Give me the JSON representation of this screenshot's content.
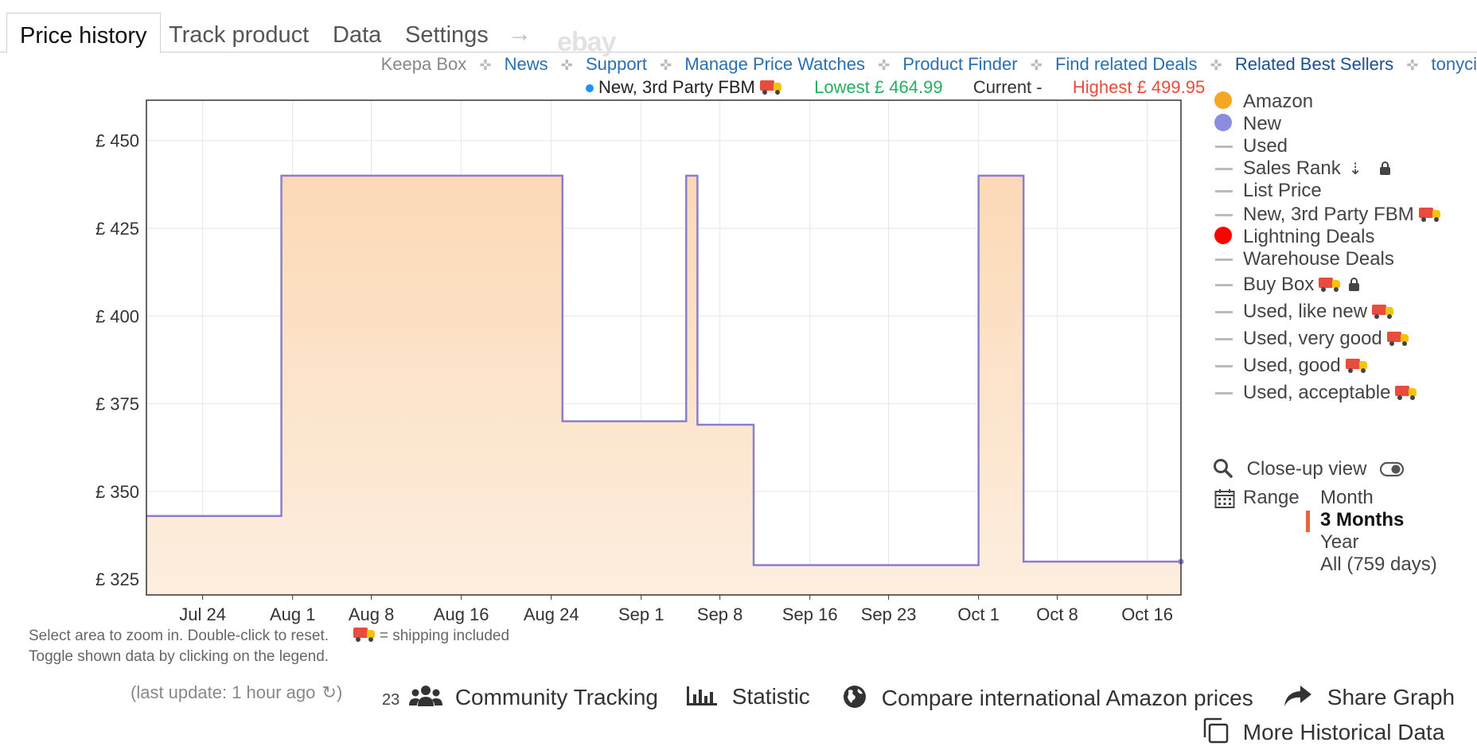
{
  "tabs": [
    {
      "label": "Price history",
      "active": true
    },
    {
      "label": "Track product",
      "active": false
    },
    {
      "label": "Data",
      "active": false
    },
    {
      "label": "Settings",
      "active": false
    }
  ],
  "tabs_arrow": "→",
  "ebay_label": "ebay",
  "links": {
    "keepa_box": "Keepa Box",
    "items": [
      "News",
      "Support",
      "Manage Price Watches",
      "Product Finder",
      "Find related Deals",
      "Related Best Sellers",
      "tonyci"
    ]
  },
  "series_info": {
    "name": "New, 3rd Party FBM",
    "lowest": "Lowest £ 464.99",
    "current": "Current -",
    "highest": "Highest £ 499.95",
    "colors": {
      "dot": "#1e90ff",
      "lowest": "#27ae60",
      "current": "#333333",
      "highest": "#e74c3c"
    }
  },
  "chart_data": {
    "type": "area",
    "x_tick_labels": [
      "Jul 24",
      "Aug 1",
      "Aug 8",
      "Aug 16",
      "Aug 24",
      "Sep 1",
      "Sep 8",
      "Sep 16",
      "Sep 23",
      "Oct 1",
      "Oct 8",
      "Oct 16"
    ],
    "y_tick_labels": [
      "£ 450",
      "£ 425",
      "£ 400",
      "£ 375",
      "£ 350",
      "£ 325"
    ],
    "y_ticks": [
      450,
      425,
      400,
      375,
      350,
      325
    ],
    "ylim": [
      320.5,
      461.5
    ],
    "xlim": [
      "2023-07-19",
      "2023-10-19"
    ],
    "x_tick_dates": [
      "2023-07-24",
      "2023-08-01",
      "2023-08-08",
      "2023-08-16",
      "2023-08-24",
      "2023-09-01",
      "2023-09-08",
      "2023-09-16",
      "2023-09-23",
      "2023-10-01",
      "2023-10-08",
      "2023-10-16"
    ],
    "step": true,
    "grid": true,
    "series": [
      {
        "name": "New",
        "color": "#8a7fcf",
        "fill": "#fde0c4",
        "points": [
          {
            "x": "2023-07-19",
            "y": 343
          },
          {
            "x": "2023-07-31",
            "y": 440
          },
          {
            "x": "2023-08-25",
            "y": 370
          },
          {
            "x": "2023-09-05",
            "y": 440
          },
          {
            "x": "2023-09-06",
            "y": 369
          },
          {
            "x": "2023-09-11",
            "y": 329
          },
          {
            "x": "2023-10-01",
            "y": 440
          },
          {
            "x": "2023-10-05",
            "y": 330
          },
          {
            "x": "2023-10-19",
            "y": 330
          }
        ]
      }
    ]
  },
  "legend": [
    {
      "label": "Amazon",
      "swatch": "circle",
      "color": "#f5a623",
      "truck": false,
      "extra": ""
    },
    {
      "label": "New",
      "swatch": "circle",
      "color": "#8c8ce0",
      "truck": false,
      "extra": ""
    },
    {
      "label": "Used",
      "swatch": "dash",
      "color": "#bbbbbb",
      "truck": false,
      "extra": ""
    },
    {
      "label": "Sales Rank",
      "swatch": "dash",
      "color": "#bbbbbb",
      "truck": false,
      "extra": "sort-lock"
    },
    {
      "label": "List Price",
      "swatch": "dash",
      "color": "#bbbbbb",
      "truck": false,
      "extra": ""
    },
    {
      "label": "New, 3rd Party FBM",
      "swatch": "dash",
      "color": "#bbbbbb",
      "truck": true,
      "extra": ""
    },
    {
      "label": "Lightning Deals",
      "swatch": "circle",
      "color": "#ff0000",
      "truck": false,
      "extra": ""
    },
    {
      "label": "Warehouse Deals",
      "swatch": "dash",
      "color": "#bbbbbb",
      "truck": false,
      "extra": ""
    },
    {
      "label": "Buy Box",
      "swatch": "dash",
      "color": "#bbbbbb",
      "truck": true,
      "extra": "lock"
    },
    {
      "label": "Used, like new",
      "swatch": "dash",
      "color": "#bbbbbb",
      "truck": true,
      "extra": ""
    },
    {
      "label": "Used, very good",
      "swatch": "dash",
      "color": "#bbbbbb",
      "truck": true,
      "extra": ""
    },
    {
      "label": "Used, good",
      "swatch": "dash",
      "color": "#bbbbbb",
      "truck": true,
      "extra": ""
    },
    {
      "label": "Used, acceptable",
      "swatch": "dash",
      "color": "#bbbbbb",
      "truck": true,
      "extra": ""
    }
  ],
  "closeup_label": "Close-up view",
  "range": {
    "label": "Range",
    "options": [
      "Month",
      "3 Months",
      "Year",
      "All (759 days)"
    ],
    "selected": "3 Months"
  },
  "notes": {
    "zoom": "Select area to zoom in. Double-click to reset.",
    "shipping": "= shipping included",
    "toggle": "Toggle shown data by clicking on the legend."
  },
  "bottom": {
    "last_update": "(last update: 1 hour ago",
    "last_update_close": ")",
    "community_count": "23",
    "community": "Community Tracking",
    "statistic": "Statistic",
    "compare": "Compare international Amazon prices",
    "share": "Share Graph",
    "more": "More Historical Data"
  }
}
